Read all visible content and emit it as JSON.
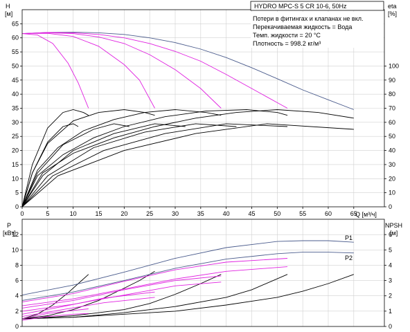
{
  "chart_data": [
    {
      "type": "line",
      "title": "HYDRO MPC-S 5 CR 10-6, 50Hz",
      "notes": [
        "Потери в фитингах и клапанах не вкл.",
        "Перекачиваемая жидкость = Вода",
        "Темп. жидкости = 20 °C",
        "Плотность = 998.2 кг/м³"
      ],
      "xlabel": "Q [м³/ч]",
      "xlim": [
        0,
        71
      ],
      "x_ticks": [
        0,
        5,
        10,
        15,
        20,
        25,
        30,
        35,
        40,
        45,
        50,
        55,
        60,
        65
      ],
      "ylabel_left": [
        "H",
        "[м]"
      ],
      "ylim_left": [
        0,
        70
      ],
      "y_ticks_left": [
        0,
        5,
        10,
        15,
        20,
        25,
        30,
        35,
        40,
        45,
        50,
        55,
        60,
        65
      ],
      "ylabel_right": [
        "eta",
        "[%]"
      ],
      "ylim_right": [
        0,
        140
      ],
      "y_ticks_right": [
        0,
        10,
        20,
        30,
        40,
        50,
        60,
        70,
        80,
        90,
        100
      ],
      "grid": true,
      "head_curves": [
        {
          "color": "#4a5b8c",
          "x": [
            0,
            5,
            10,
            15,
            20,
            25,
            30,
            35,
            40,
            45,
            50,
            55,
            60,
            65
          ],
          "y": [
            61.5,
            61.9,
            62,
            61.8,
            61.2,
            60,
            58.3,
            56,
            53,
            49.4,
            45.5,
            41.5,
            38,
            34.5
          ]
        },
        {
          "color": "#e020e0",
          "x": [
            0,
            5,
            10,
            15,
            20,
            25,
            30,
            35,
            40,
            45,
            50,
            52
          ],
          "y": [
            61.5,
            61.9,
            61.8,
            61.2,
            60,
            58,
            55.2,
            51.7,
            47,
            42,
            37,
            35
          ]
        },
        {
          "color": "#e020e0",
          "x": [
            0,
            5,
            10,
            15,
            20,
            25,
            30,
            35,
            39
          ],
          "y": [
            61.5,
            61.8,
            61.5,
            60.3,
            58,
            54,
            48.7,
            42,
            35
          ]
        },
        {
          "color": "#e020e0",
          "x": [
            0,
            5,
            10,
            15,
            20,
            23,
            26
          ],
          "y": [
            61.5,
            61.6,
            60.5,
            57,
            50.5,
            45,
            35
          ]
        },
        {
          "color": "#e020e0",
          "x": [
            0,
            3,
            6,
            9,
            11,
            13
          ],
          "y": [
            61.5,
            61,
            58,
            51,
            44,
            35
          ]
        }
      ],
      "efficiency_curves": [
        {
          "color": "#000000",
          "x": [
            0,
            2,
            5,
            8,
            10,
            12,
            13
          ],
          "y": [
            0,
            30,
            56,
            67,
            69,
            67,
            65
          ]
        },
        {
          "color": "#000000",
          "x": [
            0,
            2,
            5,
            10,
            15,
            20,
            24,
            26
          ],
          "y": [
            0,
            24,
            45,
            61,
            67,
            69,
            67,
            65
          ]
        },
        {
          "color": "#000000",
          "x": [
            0,
            3,
            7,
            12,
            18,
            24,
            30,
            36,
            39
          ],
          "y": [
            0,
            26,
            42,
            54,
            62,
            67,
            69,
            67,
            65
          ]
        },
        {
          "color": "#000000",
          "x": [
            0,
            3,
            8,
            14,
            20,
            28,
            36,
            44,
            50,
            52
          ],
          "y": [
            0,
            22,
            37,
            49,
            57,
            64,
            68,
            69,
            67,
            65
          ]
        },
        {
          "color": "#000000",
          "x": [
            0,
            4,
            10,
            18,
            26,
            34,
            42,
            50,
            58,
            65
          ],
          "y": [
            0,
            24,
            38,
            49,
            57,
            63,
            67,
            69,
            67,
            63
          ]
        },
        {
          "color": "#000000",
          "x": [
            0,
            2,
            5,
            8,
            10,
            11
          ],
          "y": [
            0,
            24,
            46,
            57,
            59,
            57
          ]
        },
        {
          "color": "#000000",
          "x": [
            0,
            3,
            8,
            14,
            18,
            21
          ],
          "y": [
            0,
            24,
            44,
            55,
            59,
            57
          ]
        },
        {
          "color": "#000000",
          "x": [
            0,
            4,
            10,
            18,
            26,
            32
          ],
          "y": [
            0,
            22,
            40,
            52,
            59,
            57
          ]
        },
        {
          "color": "#000000",
          "x": [
            0,
            5,
            14,
            24,
            34,
            42
          ],
          "y": [
            0,
            22,
            42,
            53,
            59,
            57
          ]
        },
        {
          "color": "#000000",
          "x": [
            0,
            6,
            16,
            28,
            40,
            52
          ],
          "y": [
            0,
            22,
            40,
            52,
            59,
            57
          ]
        },
        {
          "color": "#000000",
          "x": [
            0,
            7,
            20,
            34,
            48,
            65
          ],
          "y": [
            0,
            22,
            40,
            52,
            59,
            55
          ]
        }
      ]
    },
    {
      "type": "line",
      "xlim": [
        0,
        71
      ],
      "ylabel_left": [
        "P",
        "[кВт]"
      ],
      "ylim_left": [
        0,
        14
      ],
      "y_ticks_left": [
        0,
        2,
        4,
        6,
        8,
        10,
        12
      ],
      "ylabel_right": [
        "NPSH",
        "[м]"
      ],
      "ylim_right": [
        0,
        7
      ],
      "y_ticks_right": [
        0,
        1,
        2,
        3,
        4,
        5,
        6
      ],
      "grid": true,
      "series_labels": [
        "P1",
        "P2"
      ],
      "power_curves": [
        {
          "name": "P1",
          "color": "#4a5b8c",
          "x": [
            0,
            10,
            20,
            30,
            40,
            50,
            55,
            60,
            65
          ],
          "y": [
            4.1,
            5.4,
            7.1,
            8.9,
            10.3,
            11.1,
            11.2,
            11.2,
            11
          ]
        },
        {
          "name": "P2",
          "color": "#4a5b8c",
          "x": [
            0,
            10,
            20,
            30,
            40,
            50,
            55,
            60,
            65
          ],
          "y": [
            3.4,
            4.5,
            6,
            7.6,
            8.8,
            9.5,
            9.7,
            9.7,
            9.6
          ]
        },
        {
          "color": "#e020e0",
          "x": [
            0,
            10,
            20,
            30,
            40,
            52
          ],
          "y": [
            3.2,
            4.3,
            5.9,
            7.4,
            8.4,
            8.9
          ]
        },
        {
          "color": "#e020e0",
          "x": [
            0,
            10,
            20,
            30,
            40,
            52
          ],
          "y": [
            2.7,
            3.6,
            4.9,
            6.2,
            7.2,
            7.8
          ]
        },
        {
          "color": "#e020e0",
          "x": [
            0,
            10,
            20,
            30,
            39
          ],
          "y": [
            2.4,
            3.4,
            4.8,
            6,
            6.6
          ]
        },
        {
          "color": "#e020e0",
          "x": [
            0,
            10,
            20,
            30,
            39
          ],
          "y": [
            2,
            2.9,
            4.1,
            5.3,
            5.8
          ]
        },
        {
          "color": "#e020e0",
          "x": [
            0,
            8,
            16,
            26
          ],
          "y": [
            1.6,
            2.6,
            3.7,
            4.5
          ]
        },
        {
          "color": "#e020e0",
          "x": [
            0,
            8,
            16,
            26
          ],
          "y": [
            1.3,
            2.2,
            3.1,
            3.8
          ]
        },
        {
          "color": "#e020e0",
          "x": [
            0,
            5,
            10,
            13
          ],
          "y": [
            1,
            1.7,
            2.1,
            2.3
          ]
        },
        {
          "color": "#e020e0",
          "x": [
            0,
            5,
            10,
            13
          ],
          "y": [
            0.8,
            1.3,
            1.6,
            1.7
          ]
        }
      ],
      "npsh_curves": [
        {
          "color": "#000000",
          "x": [
            0,
            3,
            6,
            9,
            11,
            13
          ],
          "y": [
            0.5,
            0.8,
            1.4,
            2.2,
            2.8,
            3.4
          ]
        },
        {
          "color": "#000000",
          "x": [
            0,
            5,
            10,
            15,
            20,
            23,
            26
          ],
          "y": [
            0.5,
            0.7,
            1.1,
            1.7,
            2.5,
            3,
            3.6
          ]
        },
        {
          "color": "#000000",
          "x": [
            0,
            10,
            20,
            25,
            30,
            35,
            39
          ],
          "y": [
            0.5,
            0.7,
            1.1,
            1.5,
            2.1,
            2.8,
            3.4
          ]
        },
        {
          "color": "#000000",
          "x": [
            0,
            10,
            20,
            30,
            40,
            45,
            52
          ],
          "y": [
            0.5,
            0.6,
            0.9,
            1.3,
            1.9,
            2.4,
            3.4
          ]
        },
        {
          "color": "#000000",
          "x": [
            0,
            10,
            20,
            30,
            40,
            50,
            55,
            60,
            65
          ],
          "y": [
            0.5,
            0.6,
            0.8,
            1,
            1.4,
            1.9,
            2.3,
            2.8,
            3.4
          ]
        }
      ]
    }
  ]
}
